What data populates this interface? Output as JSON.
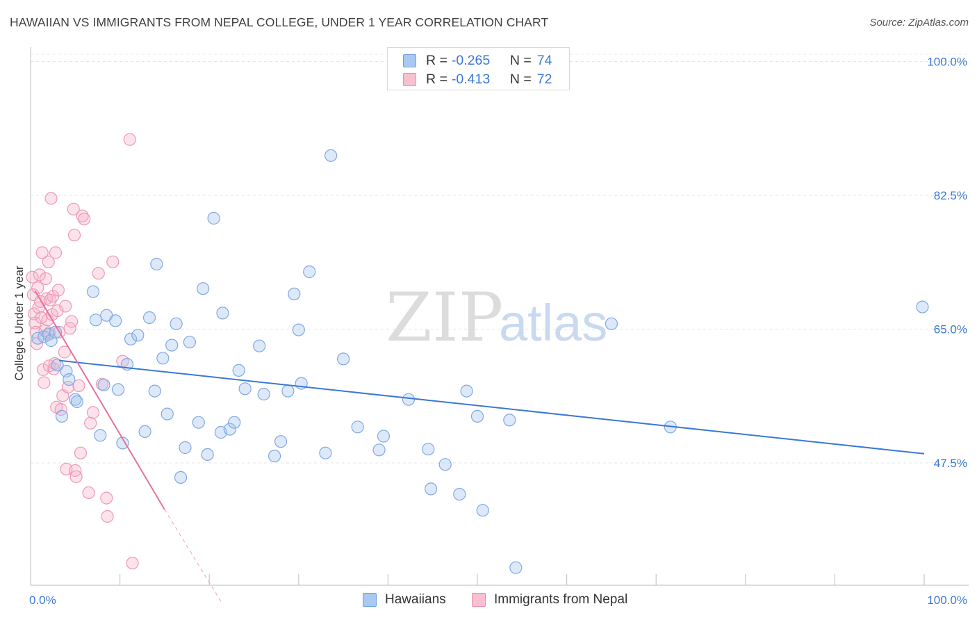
{
  "header": {
    "title": "HAWAIIAN VS IMMIGRANTS FROM NEPAL COLLEGE, UNDER 1 YEAR CORRELATION CHART",
    "source": "Source: ZipAtlas.com"
  },
  "watermark": {
    "zip": "ZIP",
    "atlas": "atlas"
  },
  "legend_top": [
    {
      "r_label": "R =",
      "r_value": "-0.265",
      "n_label": "N =",
      "n_value": "74",
      "color": "#a9c8f2",
      "border": "#6fa0e0"
    },
    {
      "r_label": "R =",
      "r_value": "-0.413",
      "n_label": "N =",
      "n_value": "72",
      "color": "#f8c0d0",
      "border": "#ea8fab"
    }
  ],
  "legend_bottom": [
    {
      "label": "Hawaiians",
      "color": "#a9c8f2",
      "border": "#6fa0e0"
    },
    {
      "label": "Immigrants from Nepal",
      "color": "#f8c0d0",
      "border": "#ea8fab"
    }
  ],
  "chart_data": {
    "type": "scatter",
    "title": "HAWAIIAN VS IMMIGRANTS FROM NEPAL COLLEGE, UNDER 1 YEAR CORRELATION CHART",
    "xlabel": "",
    "ylabel": "College, Under 1 year",
    "xlim": [
      0,
      100
    ],
    "ylim": [
      31.5,
      101.5
    ],
    "x_tick_labels": [
      "0.0%",
      "100.0%"
    ],
    "y_ticks": [
      47.5,
      65.0,
      82.5,
      100.0
    ],
    "y_tick_labels": [
      "47.5%",
      "65.0%",
      "82.5%",
      "100.0%"
    ],
    "grid": true,
    "colors": {
      "hawaiians": "#3a78d6",
      "nepal": "#e8709a"
    },
    "series": [
      {
        "name": "Hawaiians",
        "points": [
          [
            0.8,
            63.8
          ],
          [
            1.5,
            64.0
          ],
          [
            2.0,
            64.3
          ],
          [
            2.3,
            63.5
          ],
          [
            2.8,
            64.6
          ],
          [
            3.0,
            60.3
          ],
          [
            3.5,
            53.6
          ],
          [
            4.0,
            59.5
          ],
          [
            4.3,
            58.4
          ],
          [
            5.0,
            55.8
          ],
          [
            5.2,
            55.5
          ],
          [
            7.0,
            69.9
          ],
          [
            7.3,
            66.2
          ],
          [
            7.8,
            51.1
          ],
          [
            8.2,
            57.7
          ],
          [
            8.5,
            66.8
          ],
          [
            9.5,
            66.1
          ],
          [
            9.8,
            57.1
          ],
          [
            10.3,
            50.1
          ],
          [
            10.8,
            60.4
          ],
          [
            11.2,
            63.7
          ],
          [
            12.0,
            64.2
          ],
          [
            12.8,
            51.6
          ],
          [
            13.3,
            66.5
          ],
          [
            13.9,
            56.9
          ],
          [
            14.1,
            73.5
          ],
          [
            14.8,
            61.2
          ],
          [
            15.3,
            53.9
          ],
          [
            15.8,
            62.9
          ],
          [
            16.3,
            65.7
          ],
          [
            16.8,
            45.6
          ],
          [
            17.3,
            49.5
          ],
          [
            17.8,
            63.3
          ],
          [
            18.8,
            52.8
          ],
          [
            19.3,
            70.3
          ],
          [
            19.8,
            48.6
          ],
          [
            20.5,
            79.5
          ],
          [
            21.3,
            51.5
          ],
          [
            21.5,
            67.1
          ],
          [
            22.3,
            51.9
          ],
          [
            22.8,
            52.8
          ],
          [
            23.3,
            59.6
          ],
          [
            24.0,
            57.2
          ],
          [
            25.6,
            62.8
          ],
          [
            26.1,
            56.5
          ],
          [
            27.3,
            48.4
          ],
          [
            28.0,
            50.3
          ],
          [
            28.8,
            56.9
          ],
          [
            29.5,
            69.6
          ],
          [
            30.0,
            64.9
          ],
          [
            30.3,
            57.9
          ],
          [
            31.2,
            72.5
          ],
          [
            33.0,
            48.8
          ],
          [
            33.6,
            87.7
          ],
          [
            35.0,
            61.1
          ],
          [
            36.6,
            52.2
          ],
          [
            39.0,
            49.2
          ],
          [
            39.5,
            51.0
          ],
          [
            42.3,
            55.8
          ],
          [
            44.5,
            49.3
          ],
          [
            44.8,
            44.1
          ],
          [
            46.4,
            47.3
          ],
          [
            48.0,
            43.4
          ],
          [
            48.8,
            56.9
          ],
          [
            50.0,
            53.6
          ],
          [
            50.6,
            41.3
          ],
          [
            53.6,
            53.1
          ],
          [
            54.3,
            33.8
          ],
          [
            65.0,
            65.7
          ],
          [
            71.6,
            52.2
          ],
          [
            99.8,
            67.9
          ]
        ],
        "trend": {
          "x": [
            3.2,
            100.0
          ],
          "y": [
            60.9,
            48.7
          ]
        }
      },
      {
        "name": "Immigrants from Nepal",
        "points": [
          [
            0.2,
            71.8
          ],
          [
            0.3,
            69.5
          ],
          [
            0.4,
            67.0
          ],
          [
            0.5,
            65.8
          ],
          [
            0.6,
            64.6
          ],
          [
            0.7,
            63.1
          ],
          [
            0.8,
            70.4
          ],
          [
            0.9,
            67.8
          ],
          [
            1.0,
            72.1
          ],
          [
            1.1,
            68.6
          ],
          [
            1.2,
            66.5
          ],
          [
            1.3,
            75.0
          ],
          [
            1.4,
            59.7
          ],
          [
            1.5,
            58.0
          ],
          [
            1.6,
            64.8
          ],
          [
            1.7,
            71.6
          ],
          [
            1.8,
            69.0
          ],
          [
            1.9,
            66.2
          ],
          [
            2.0,
            73.8
          ],
          [
            2.1,
            60.2
          ],
          [
            2.1,
            64.5
          ],
          [
            2.2,
            68.8
          ],
          [
            2.3,
            82.1
          ],
          [
            2.4,
            66.9
          ],
          [
            2.5,
            69.3
          ],
          [
            2.6,
            59.8
          ],
          [
            2.7,
            60.5
          ],
          [
            2.8,
            75.0
          ],
          [
            2.9,
            54.8
          ],
          [
            3.0,
            67.4
          ],
          [
            3.1,
            70.1
          ],
          [
            3.2,
            64.6
          ],
          [
            3.4,
            54.5
          ],
          [
            3.6,
            56.3
          ],
          [
            3.8,
            62.0
          ],
          [
            3.9,
            68.0
          ],
          [
            4.0,
            46.7
          ],
          [
            4.2,
            57.4
          ],
          [
            4.4,
            65.1
          ],
          [
            4.6,
            66.0
          ],
          [
            4.8,
            80.7
          ],
          [
            4.9,
            77.3
          ],
          [
            5.0,
            46.5
          ],
          [
            5.4,
            57.6
          ],
          [
            5.6,
            48.8
          ],
          [
            5.8,
            79.8
          ],
          [
            6.0,
            79.4
          ],
          [
            5.1,
            45.7
          ],
          [
            6.5,
            43.6
          ],
          [
            6.7,
            52.7
          ],
          [
            7.0,
            54.1
          ],
          [
            7.6,
            72.3
          ],
          [
            8.0,
            57.8
          ],
          [
            8.5,
            42.9
          ],
          [
            8.6,
            40.5
          ],
          [
            9.2,
            73.8
          ],
          [
            10.3,
            60.8
          ],
          [
            11.1,
            89.8
          ],
          [
            11.4,
            34.4
          ]
        ],
        "trend": {
          "x": [
            0.5,
            15.0
          ],
          "y": [
            70.0,
            41.4
          ]
        },
        "trend_dashed": {
          "x": [
            15.0,
            21.5
          ],
          "y": [
            41.4,
            29.0
          ]
        }
      }
    ]
  }
}
